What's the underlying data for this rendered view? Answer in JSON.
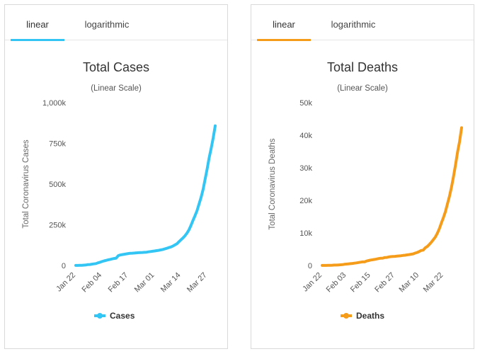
{
  "panels": [
    {
      "tabs": [
        {
          "label": "linear"
        },
        {
          "label": "logarithmic"
        }
      ],
      "active_tab": 0,
      "title": "Total Cases",
      "subtitle": "(Linear Scale)",
      "ylabel": "Total Coronavirus Cases",
      "legend": "Cases",
      "color": "#33c6f5",
      "yticks": [
        {
          "v": 0,
          "label": "0"
        },
        {
          "v": 250000,
          "label": "250k"
        },
        {
          "v": 500000,
          "label": "500k"
        },
        {
          "v": 750000,
          "label": "750k"
        },
        {
          "v": 1000000,
          "label": "1,000k"
        }
      ],
      "xticks": [
        {
          "i": 0,
          "label": "Jan 22"
        },
        {
          "i": 13,
          "label": "Feb 04"
        },
        {
          "i": 26,
          "label": "Feb 17"
        },
        {
          "i": 39,
          "label": "Mar 01"
        },
        {
          "i": 52,
          "label": "Mar 14"
        },
        {
          "i": 65,
          "label": "Mar 27"
        }
      ]
    },
    {
      "tabs": [
        {
          "label": "linear"
        },
        {
          "label": "logarithmic"
        }
      ],
      "active_tab": 0,
      "title": "Total Deaths",
      "subtitle": "(Linear Scale)",
      "ylabel": "Total Coronavirus Deaths",
      "legend": "Deaths",
      "color": "#f59c1a",
      "yticks": [
        {
          "v": 0,
          "label": "0"
        },
        {
          "v": 10000,
          "label": "10k"
        },
        {
          "v": 20000,
          "label": "20k"
        },
        {
          "v": 30000,
          "label": "30k"
        },
        {
          "v": 40000,
          "label": "40k"
        },
        {
          "v": 50000,
          "label": "50k"
        }
      ],
      "xticks": [
        {
          "i": 0,
          "label": "Jan 22"
        },
        {
          "i": 12,
          "label": "Feb 03"
        },
        {
          "i": 24,
          "label": "Feb 15"
        },
        {
          "i": 36,
          "label": "Feb 27"
        },
        {
          "i": 48,
          "label": "Mar 10"
        },
        {
          "i": 60,
          "label": "Mar 22"
        }
      ]
    }
  ],
  "chart_data": [
    {
      "type": "line",
      "title": "Total Cases",
      "subtitle": "(Linear Scale)",
      "xlabel": "",
      "ylabel": "Total Coronavirus Cases",
      "ylim": [
        0,
        1000000
      ],
      "legend_position": "bottom",
      "grid": false,
      "x_start": "Jan 22",
      "series": [
        {
          "name": "Cases",
          "color": "#33c6f5",
          "values": [
            560,
            650,
            940,
            1400,
            2100,
            2900,
            5600,
            6100,
            8200,
            9800,
            11900,
            16600,
            19900,
            24500,
            28300,
            31500,
            34900,
            37600,
            40600,
            43100,
            45200,
            60400,
            64600,
            67100,
            69200,
            71300,
            73300,
            75200,
            75700,
            76700,
            77700,
            78600,
            79400,
            80000,
            80800,
            81900,
            83700,
            85500,
            87400,
            89200,
            91100,
            93200,
            95700,
            98200,
            101800,
            105800,
            109800,
            113600,
            118600,
            125900,
            133000,
            145400,
            157500,
            168900,
            182200,
            198200,
            218700,
            245500,
            276800,
            305200,
            336400,
            378400,
            418000,
            467500,
            529300,
            593000,
            660700,
            720000,
            782400,
            857800
          ]
        }
      ]
    },
    {
      "type": "line",
      "title": "Total Deaths",
      "subtitle": "(Linear Scale)",
      "xlabel": "",
      "ylabel": "Total Coronavirus Deaths",
      "ylim": [
        0,
        50000
      ],
      "legend_position": "bottom",
      "grid": false,
      "x_start": "Jan 22",
      "series": [
        {
          "name": "Deaths",
          "color": "#f59c1a",
          "values": [
            17,
            18,
            26,
            42,
            56,
            82,
            131,
            133,
            171,
            213,
            259,
            362,
            426,
            492,
            564,
            634,
            719,
            806,
            906,
            1013,
            1113,
            1118,
            1371,
            1523,
            1666,
            1770,
            1868,
            2007,
            2122,
            2247,
            2251,
            2458,
            2469,
            2629,
            2708,
            2770,
            2814,
            2872,
            2941,
            2996,
            3085,
            3160,
            3254,
            3348,
            3460,
            3558,
            3803,
            3996,
            4262,
            4615,
            4720,
            5404,
            5819,
            6440,
            7126,
            7905,
            8733,
            9867,
            11299,
            13015,
            14687,
            16558,
            18915,
            21292,
            24000,
            27370,
            30861,
            34830,
            38000,
            42300
          ]
        }
      ]
    }
  ]
}
